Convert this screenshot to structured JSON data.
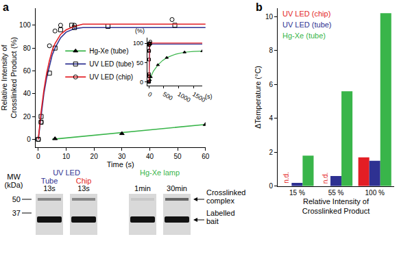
{
  "panel_labels": [
    "a",
    "b"
  ],
  "chart_data": [
    {
      "type": "scatter",
      "xlabel": "Time (s)",
      "ylabel": [
        "Relative Intensity of",
        "Crosslinked Product (%)"
      ],
      "xlim": [
        -1,
        60
      ],
      "xticks": [
        0,
        10,
        20,
        30,
        40,
        50,
        60
      ],
      "ylim": [
        -7,
        115
      ],
      "yticks": [
        0,
        20,
        40,
        60,
        80,
        100
      ],
      "legend": "left",
      "series": [
        {
          "name": "Hg-Xe (tube)",
          "color": "#39b54a",
          "marker": "triangle-up",
          "x": [
            6,
            30,
            60,
            300,
            600,
            1200,
            1800
          ],
          "values": [
            0.5,
            5,
            13,
            44,
            63,
            77,
            80
          ],
          "fit_x": [
            5,
            60,
            150,
            300,
            450,
            600,
            900,
            1200,
            1500,
            1800
          ],
          "fit_values": [
            0,
            13,
            28,
            44,
            55,
            63,
            72,
            77,
            79,
            80
          ]
        },
        {
          "name": "UV LED (tube)",
          "color": "#2e3192",
          "marker": "square-open",
          "x": [
            0,
            1,
            1,
            4,
            6,
            8,
            12,
            13,
            25,
            49
          ],
          "values": [
            0,
            20,
            15,
            58,
            80,
            96,
            100,
            98,
            99,
            100
          ],
          "fit_x": [
            0,
            1,
            2,
            3,
            4,
            5,
            6,
            8,
            10,
            13,
            16,
            20,
            30,
            60,
            1800
          ],
          "fit_values": [
            0,
            22,
            40,
            54,
            65,
            74,
            80,
            89,
            94,
            97,
            98,
            98,
            98,
            98,
            98
          ]
        },
        {
          "name": "UV LED (chip)",
          "color": "#e31e24",
          "marker": "circle-open",
          "x": [
            0,
            1,
            4,
            6,
            8,
            13,
            48
          ],
          "values": [
            0,
            15,
            82,
            95,
            100,
            100,
            105
          ],
          "fit_x": [
            0,
            1,
            2,
            3,
            4,
            5,
            6,
            8,
            10,
            13,
            16,
            20,
            30,
            60,
            1800
          ],
          "fit_values": [
            0,
            24,
            43,
            58,
            69,
            78,
            84,
            92,
            96,
            99,
            101,
            101,
            101,
            101,
            101
          ]
        }
      ],
      "inset": {
        "xlabel": "(s)",
        "ylabel": "(%)",
        "xlim": [
          -60,
          1800
        ],
        "xticks": [
          0,
          500,
          1000,
          1500
        ],
        "ylim": [
          -10,
          115
        ],
        "yticks": [
          0,
          50,
          100
        ]
      }
    },
    {
      "type": "bar",
      "xlabel": [
        "Relative Intensity of",
        "Crosslinked Product"
      ],
      "ylabel": "ΔTemperature (°C)",
      "categories": [
        "15 %",
        "55 %",
        "100 %"
      ],
      "ylim": [
        0,
        10.5
      ],
      "yticks": [
        0,
        2,
        4,
        6,
        8,
        10
      ],
      "legend": "upper left",
      "series": [
        {
          "name": "UV LED (chip)",
          "color": "#e31e24",
          "values": [
            null,
            null,
            1.7
          ]
        },
        {
          "name": "UV LED (tube)",
          "color": "#2e3192",
          "values": [
            0.2,
            0.6,
            1.5
          ]
        },
        {
          "name": "Hg-Xe (tube)",
          "color": "#39b54a",
          "values": [
            1.8,
            5.6,
            10.2
          ]
        }
      ],
      "annotations": [
        {
          "text": "n.d.",
          "category": "15 %",
          "series": "UV LED (chip)"
        },
        {
          "text": "n.d.",
          "category": "55 %",
          "series": "UV LED (chip)"
        }
      ]
    }
  ],
  "gel": {
    "mw_label": [
      "MW",
      "(kDa)"
    ],
    "mw_markers": [
      50,
      37
    ],
    "groups": [
      {
        "label": "UV LED",
        "color": "#2e3192",
        "lanes": [
          {
            "label": "Tube",
            "color": "#2e3192",
            "time": "13s"
          },
          {
            "label": "Chip",
            "color": "#e31e24",
            "time": "13s"
          }
        ]
      },
      {
        "label": "Hg-Xe lamp",
        "color": "#39b54a",
        "lanes": [
          {
            "time": "1min"
          },
          {
            "time": "30min"
          }
        ]
      }
    ],
    "bands": [
      [
        "Crosslinked",
        "complex"
      ],
      [
        "Labelled",
        "bait"
      ]
    ]
  }
}
